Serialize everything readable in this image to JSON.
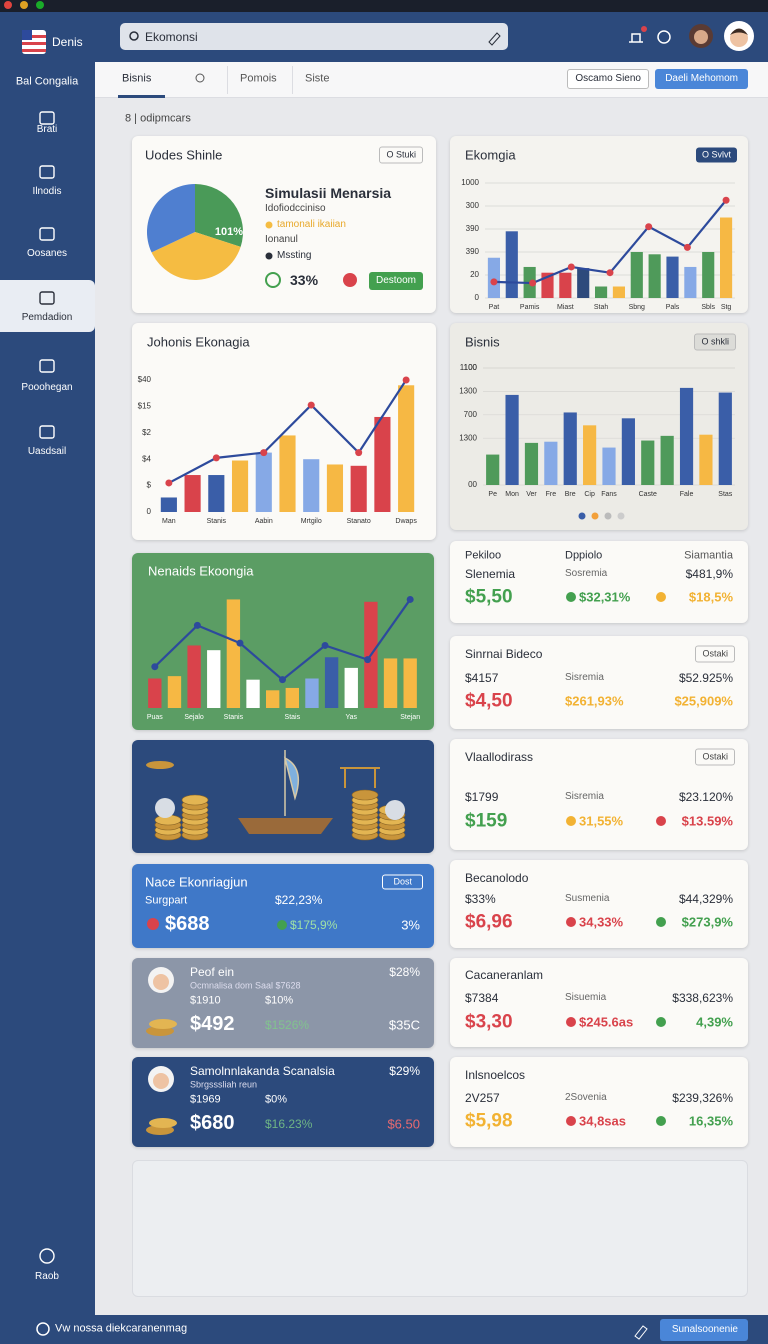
{
  "app": {
    "brand": "Denis",
    "search": "Ekomonsi"
  },
  "sidebar": {
    "subtitle": "Bal Congalia",
    "items": [
      "Brati",
      "Ilnodis",
      "Oosanes",
      "Pemdadion",
      "Pooohegan",
      "Uasdsail"
    ],
    "active": 3,
    "footer": "Raob"
  },
  "tabs": {
    "items": [
      "Bisnis",
      "Pomois",
      "Siste"
    ],
    "active": 0,
    "buttons": [
      "Oscamo Sieno",
      "Daeli Mehomom"
    ]
  },
  "breadcrumb": "8 | odipmcars",
  "pie_card": {
    "title": "Uodes Shinle",
    "button": "O Stuki",
    "heading": "Simulasii Menarsia",
    "lines": [
      "Idofiodcciniso",
      "tamonali ikaiian",
      "Ionanul",
      "Mssting"
    ],
    "stat": "33%",
    "action": "Destoom",
    "chart": {
      "type": "pie",
      "label": "101%",
      "values": [
        30,
        38,
        32
      ],
      "colors": [
        "#4a9a58",
        "#f5bc42",
        "#4f7fd0"
      ]
    }
  },
  "charts": [
    {
      "type": "bar_line",
      "title": "Ekomgia",
      "button": "O Svlvt",
      "ylim": [
        0,
        100
      ],
      "grid": true,
      "yticks": [
        0,
        20,
        {
          "value": 40,
          "label": "390"
        },
        {
          "value": 60,
          "label": "390"
        },
        {
          "value": 80,
          "label": "300"
        },
        {
          "value": 100,
          "label": "1000"
        }
      ],
      "categories": [
        "Pat",
        null,
        "Pamis",
        null,
        "Miast",
        null,
        "Stah",
        null,
        "Sbng",
        null,
        "Pals",
        null,
        "Sbls",
        "Stg"
      ],
      "values": [
        35,
        58,
        27,
        22,
        22,
        26,
        10,
        10,
        40,
        38,
        36,
        27,
        40,
        70
      ],
      "colors": [
        "#86a9e6",
        "#3a5ea8",
        "#4f9a5a",
        "#d9434b",
        "#d9434b",
        "#2d4a7c",
        "#4f9a5a",
        "#f6b844",
        "#4f9a5a",
        "#4f9a5a",
        "#3a5ea8",
        "#86a9e6",
        "#4f9a5a",
        "#f6b844"
      ],
      "line": {
        "values": [
          14,
          13,
          27,
          22,
          62,
          44,
          85
        ],
        "color": "#2d4a9c",
        "marker_color": "#d9434b"
      }
    },
    {
      "type": "bar_line",
      "title": "Johonis Ekonagia",
      "ylim": [
        0,
        100
      ],
      "grid": false,
      "yticks": [
        0,
        {
          "value": 20,
          "label": "$"
        },
        {
          "value": 40,
          "label": "$4"
        },
        {
          "value": 60,
          "label": "$2"
        },
        {
          "value": 80,
          "label": "$15"
        },
        {
          "value": 100,
          "label": "$40"
        }
      ],
      "categories": [
        "Man",
        null,
        "Stanis",
        null,
        "Aabin",
        null,
        "Mrtgilo",
        null,
        "Stanato",
        null,
        "Dwaps"
      ],
      "values": [
        11,
        28,
        28,
        39,
        45,
        58,
        40,
        36,
        35,
        72,
        96
      ],
      "colors": [
        "#3a5ea8",
        "#d9434b",
        "#3a5ea8",
        "#f6b844",
        "#86a9e6",
        "#f6b844",
        "#86a9e6",
        "#f6b844",
        "#d9434b",
        "#d9434b",
        "#f6b844"
      ],
      "line": {
        "values": [
          22,
          41,
          45,
          81,
          45,
          100
        ],
        "color": "#2d4a9c",
        "marker_color": "#d9434b"
      }
    },
    {
      "type": "bar_line",
      "title": "Bisnis",
      "button": "O shkli",
      "ylim": [
        0,
        100
      ],
      "grid": true,
      "yticks": [
        {
          "value": 0,
          "label": "00"
        },
        100,
        {
          "value": 40,
          "label": "1300"
        },
        {
          "value": 60,
          "label": "700"
        },
        {
          "value": 80,
          "label": "1300"
        },
        {
          "value": 100,
          "label": "1100"
        }
      ],
      "categories": [
        "Pe",
        "Mon",
        "Ver",
        "Fre",
        "Bre",
        "Cip",
        "Fans",
        null,
        "Caste",
        null,
        "Fale",
        null,
        "Stas"
      ],
      "values": [
        26,
        77,
        36,
        37,
        62,
        51,
        32,
        57,
        38,
        42,
        83,
        43,
        79
      ],
      "colors": [
        "#4f9a5a",
        "#3a5ea8",
        "#4f9a5a",
        "#86a9e6",
        "#3a5ea8",
        "#f6b844",
        "#86a9e6",
        "#3a5ea8",
        "#4f9a5a",
        "#4f9a5a",
        "#3a5ea8",
        "#f6b844",
        "#3a5ea8"
      ]
    },
    {
      "type": "bar_line",
      "title": "Nenaids Ekoongia",
      "ylim": [
        0,
        100
      ],
      "categories": [
        "Puas",
        null,
        "Sejalo",
        null,
        "Stanis",
        null,
        null,
        "Stais",
        null,
        null,
        "Yas",
        null,
        null,
        "Stejan"
      ],
      "values": [
        25,
        27,
        53,
        49,
        92,
        24,
        15,
        17,
        25,
        43,
        34,
        90,
        42,
        42
      ],
      "colors": [
        "#d9434b",
        "#f6b844",
        "#d9434b",
        "#ffffff",
        "#f6b844",
        "#ffffff",
        "#f6b844",
        "#f6b844",
        "#86a9e6",
        "#3a5ea8",
        "#ffffff",
        "#d9434b",
        "#f6b844",
        "#f6b844"
      ],
      "line": {
        "values": [
          35,
          70,
          55,
          24,
          53,
          41,
          92
        ],
        "color": "#2d4a9c",
        "marker_color": "#2d4a9c"
      }
    }
  ],
  "promo_cards": [
    {
      "title": "Nace Ekonriagjun",
      "button": "Dost",
      "label": "Surgpart",
      "top_value": "$22,23%",
      "value": "$688",
      "change": "$175,9%",
      "right": "3%"
    },
    {
      "title": "Peof ein",
      "top_value": "$28%",
      "subtitle": "Ocmnalisa dom Saal $7628",
      "small": [
        "$1910",
        "$10%"
      ],
      "value": "$492",
      "change": "$1526%",
      "right": "$35C"
    },
    {
      "title": "Samolnnlakanda Scanalsia",
      "top_value": "$29%",
      "subtitle": "Sbrgsssliah reun",
      "small": [
        "$1969",
        "$0%"
      ],
      "value": "$680",
      "change": "$16.23%",
      "right": "$6.50"
    }
  ],
  "stat_cards": [
    {
      "headers": [
        "Pekiloo",
        "Dppiolo",
        "Siamantia"
      ],
      "row1": [
        "Slenemia",
        "Sosremia",
        "$481,9%"
      ],
      "row2": [
        "$5,50",
        "$32,31%",
        "$18,5%"
      ],
      "colors": [
        "#43a04f",
        "#43a04f",
        "#f2b233"
      ]
    },
    {
      "title": "Sinrnai Bideco",
      "button": "Ostaki",
      "row1": [
        "$4157",
        "Sisremia",
        "$52.925%"
      ],
      "row2": [
        "$4,50",
        "$261,93%",
        "$25,909%"
      ],
      "colors": [
        "#d9434b",
        "#f2b233",
        "#f2b233"
      ]
    },
    {
      "title": "Vlaallodirass",
      "button": "Ostaki",
      "row1": [
        "$1799",
        "Sisremia",
        "$23.120%"
      ],
      "row2": [
        "$159",
        "31,55%",
        "$13.59%"
      ],
      "colors": [
        "#43a04f",
        "#f2b233",
        "#d9434b"
      ]
    },
    {
      "title": "Becanolodo",
      "row1": [
        "$33%",
        "Susmenia",
        "$44,329%"
      ],
      "row2": [
        "$6,96",
        "34,33%",
        "$273,9%"
      ],
      "colors": [
        "#d9434b",
        "#d9434b",
        "#43a04f"
      ]
    },
    {
      "title": "Cacaneranlam",
      "row1": [
        "$7384",
        "Sisuemia",
        "$338,623%"
      ],
      "row2": [
        "$3,30",
        "$245.6as",
        "4,39%"
      ],
      "colors": [
        "#d9434b",
        "#d9434b",
        "#43a04f"
      ]
    },
    {
      "title": "Inlsnoelcos",
      "row1": [
        "2V257",
        "2Sovenia",
        "$239,326%"
      ],
      "row2": [
        "$5,98",
        "34,8sas",
        "16,35%"
      ],
      "colors": [
        "#f2b233",
        "#d9434b",
        "#43a04f"
      ]
    }
  ],
  "footer": {
    "status": "Vw nossa diekcaranenmag",
    "button": "Sunalsoonenie"
  }
}
